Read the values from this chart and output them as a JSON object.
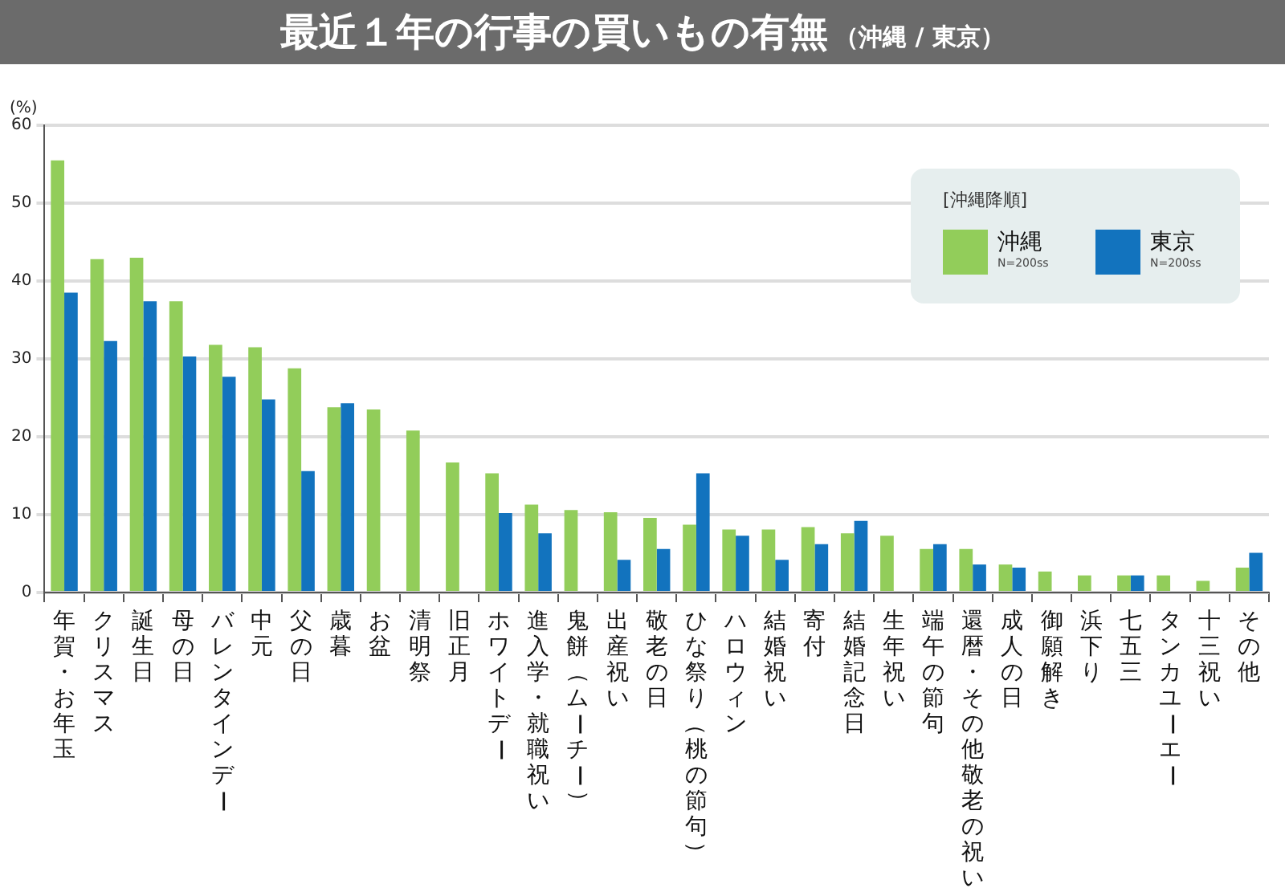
{
  "chart_data": {
    "type": "bar",
    "title": "最近１年の行事の買いもの有無",
    "subtitle": "（沖縄 / 東京）",
    "ylabel": "(%)",
    "legend_title": "[沖縄降順]",
    "categories": [
      "年賀・お年玉",
      "クリスマス",
      "誕生日",
      "母の日",
      "バレンタインデー",
      "中元",
      "父の日",
      "歳暮",
      "お盆",
      "清明祭",
      "旧正月",
      "ホワイトデー",
      "進入学・就職祝い",
      "鬼餅（ムーチー）",
      "出産祝い",
      "敬老の日",
      "ひな祭り（桃の節句）",
      "ハロウィン",
      "結婚祝い",
      "寄付",
      "結婚記念日",
      "生年祝い",
      "端午の節句",
      "還暦・その他敬老の祝い",
      "成人の日",
      "御願解き",
      "浜下り",
      "七五三",
      "タンカユーエー",
      "十三祝い",
      "その他"
    ],
    "series": [
      {
        "name": "沖縄",
        "color": "#92cd5a",
        "values": [
          55.5,
          42.8,
          43,
          37.4,
          31.8,
          31.5,
          28.8,
          23.8,
          23.5,
          20.8,
          16.7,
          15.3,
          11.3,
          10.6,
          10.3,
          9.6,
          8.7,
          8.1,
          8.1,
          8.4,
          7.6,
          7.3,
          5.6,
          5.6,
          3.6,
          2.7,
          2.2,
          2.2,
          2.2,
          1.5,
          3.2
        ]
      },
      {
        "name": "東京",
        "color": "#1273be",
        "values": [
          38.5,
          32.3,
          37.4,
          30.3,
          27.7,
          24.8,
          15.6,
          24.3,
          0,
          0,
          0,
          10.2,
          7.6,
          0,
          4.2,
          5.6,
          15.3,
          7.3,
          4.2,
          6.2,
          9.2,
          0,
          6.2,
          3.6,
          3.2,
          0,
          0,
          2.2,
          0,
          0,
          5.1
        ]
      }
    ],
    "annotations": [
      "N=200ss",
      "N=200ss"
    ],
    "ylim": [
      0,
      60
    ],
    "yticks": [
      0,
      10,
      20,
      30,
      40,
      50,
      60
    ],
    "grid": "y",
    "legend": "top right"
  }
}
